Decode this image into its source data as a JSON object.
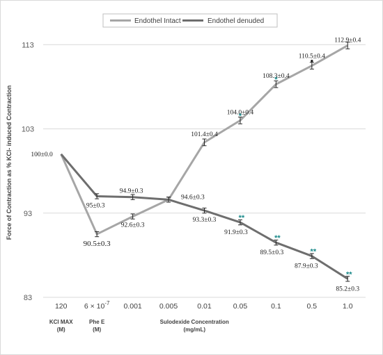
{
  "chart_data": {
    "type": "line",
    "ylabel": "Force of Contraction as % KCl- induced Contraction",
    "ylim": [
      83,
      115
    ],
    "yticks": [
      83,
      93,
      103,
      113
    ],
    "xticks": [
      "120",
      "6 × 10⁻⁷",
      "0.001",
      "0.005",
      "0.01",
      "0.05",
      "0.1",
      "0.5",
      "1.0"
    ],
    "x_category_labels": [
      {
        "lines": [
          "KCl MAX",
          "(M)"
        ],
        "at": 0
      },
      {
        "lines": [
          "Phe E",
          "(M)"
        ],
        "at": 1
      },
      {
        "lines": [
          "Sulodexide Concentration",
          "(mg/mL)"
        ],
        "at": 4.5
      }
    ],
    "legend_position": "top-center",
    "grid": "horizontal",
    "series": [
      {
        "name": "Endothel Intact",
        "color": "#a6a6a6",
        "values": [
          100,
          90.5,
          92.6,
          94.6,
          101.4,
          104.0,
          108.3,
          110.5,
          112.9
        ],
        "errors": [
          0,
          0.3,
          0.3,
          0.3,
          0.4,
          0.4,
          0.4,
          0.4,
          0.4
        ],
        "labels": [
          "100±0.0",
          "90.5±0.3",
          "92.6±0.3",
          "94.6±0.3",
          "101.4±0.4",
          "104.0±0.4",
          "108.3±0.4",
          "110.5±0.4",
          "112.9±0.4"
        ],
        "significance": [
          "",
          "",
          "",
          "",
          "",
          "*",
          "*",
          "•",
          ""
        ]
      },
      {
        "name": "Endothel denuded",
        "color": "#6e6e6e",
        "values": [
          100,
          95,
          94.9,
          94.6,
          93.3,
          91.9,
          89.5,
          87.9,
          85.2
        ],
        "errors": [
          0,
          0.3,
          0.3,
          0.3,
          0.3,
          0.3,
          0.3,
          0.3,
          0.3
        ],
        "labels": [
          "",
          "95±0.3",
          "94.9±0.3",
          "",
          "93.3±0.3",
          "91.9±0.3",
          "89.5±0.3",
          "87.9±0.3",
          "85.2±0.3"
        ],
        "significance": [
          "",
          "",
          "",
          "",
          "",
          "**",
          "**",
          "**",
          "**"
        ]
      }
    ]
  }
}
